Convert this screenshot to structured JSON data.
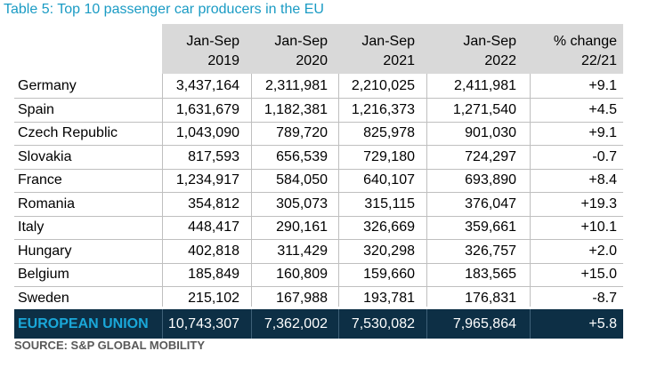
{
  "title": "Table 5: Top 10 passenger car producers in the EU",
  "columns": [
    {
      "line1": "Jan-Sep",
      "line2": "2019"
    },
    {
      "line1": "Jan-Sep",
      "line2": "2020"
    },
    {
      "line1": "Jan-Sep",
      "line2": "2021"
    },
    {
      "line1": "Jan-Sep",
      "line2": "2022"
    },
    {
      "line1": "% change",
      "line2": "22/21"
    }
  ],
  "rows": [
    {
      "country": "Germany",
      "values": [
        "3,437,164",
        "2,311,981",
        "2,210,025",
        "2,411,981",
        "+9.1"
      ]
    },
    {
      "country": "Spain",
      "values": [
        "1,631,679",
        "1,182,381",
        "1,216,373",
        "1,271,540",
        "+4.5"
      ]
    },
    {
      "country": "Czech Republic",
      "values": [
        "1,043,090",
        "789,720",
        "825,978",
        "901,030",
        "+9.1"
      ]
    },
    {
      "country": "Slovakia",
      "values": [
        "817,593",
        "656,539",
        "729,180",
        "724,297",
        "-0.7"
      ]
    },
    {
      "country": "France",
      "values": [
        "1,234,917",
        "584,050",
        "640,107",
        "693,890",
        "+8.4"
      ]
    },
    {
      "country": "Romania",
      "values": [
        "354,812",
        "305,073",
        "315,115",
        "376,047",
        "+19.3"
      ]
    },
    {
      "country": "Italy",
      "values": [
        "448,417",
        "290,161",
        "326,669",
        "359,661",
        "+10.1"
      ]
    },
    {
      "country": "Hungary",
      "values": [
        "402,818",
        "311,429",
        "320,298",
        "326,757",
        "+2.0"
      ]
    },
    {
      "country": "Belgium",
      "values": [
        "185,849",
        "160,809",
        "159,660",
        "183,565",
        "+15.0"
      ]
    },
    {
      "country": "Sweden",
      "values": [
        "215,102",
        "167,988",
        "193,781",
        "176,831",
        "-8.7"
      ]
    }
  ],
  "total": {
    "label": "EUROPEAN UNION",
    "values": [
      "10,743,307",
      "7,362,002",
      "7,530,082",
      "7,965,864",
      "+5.8"
    ]
  },
  "source": "SOURCE: S&P GLOBAL MOBILITY",
  "colors": {
    "title": "#1a9bc4",
    "header_bg": "#d9d9d9",
    "total_bg": "#0d2f45",
    "total_label": "#1aa7d8"
  }
}
